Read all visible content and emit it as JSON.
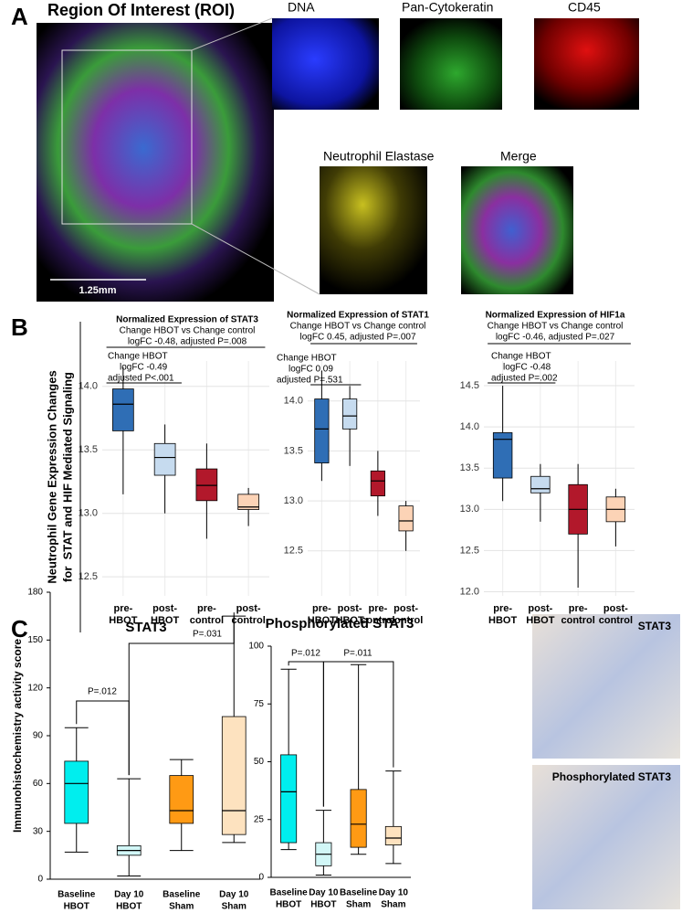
{
  "figure": {
    "panel_labels": [
      "A",
      "B",
      "C"
    ],
    "y_label_b": [
      "Neutrophil Gene Expression Changes",
      "for  STAT and HIF Mediated Signaling"
    ]
  },
  "images": {
    "roi": "Region Of Interest (ROI)",
    "scale_bar": "1.25mm",
    "channels": [
      "DNA",
      "Pan-Cytokeratin",
      "CD45",
      "Neutrophil Elastase",
      "Merge"
    ],
    "ihc": [
      "STAT3",
      "Phosphorylated STAT3"
    ]
  },
  "chart_data": [
    {
      "type": "box",
      "title": "Normalized Expression of STAT3",
      "annotations": [
        "Change HBOT vs Change control",
        "logFC -0.48, adjusted P=.008",
        "Change HBOT",
        "logFC -0.49",
        "adjusted P<.001"
      ],
      "categories": [
        [
          "pre-",
          "HBOT"
        ],
        [
          "post-",
          "HBOT"
        ],
        [
          "pre-",
          "control"
        ],
        [
          "post-",
          "control"
        ]
      ],
      "boxes": [
        {
          "min": 13.15,
          "q1": 13.65,
          "median": 13.86,
          "q3": 13.98,
          "max": 14.15,
          "color": "#2f6eb5"
        },
        {
          "min": 13.0,
          "q1": 13.3,
          "median": 13.44,
          "q3": 13.55,
          "max": 13.7,
          "color": "#c6dbef"
        },
        {
          "min": 12.8,
          "q1": 13.1,
          "median": 13.22,
          "q3": 13.35,
          "max": 13.55,
          "color": "#b2182b"
        },
        {
          "min": 12.9,
          "q1": 13.03,
          "median": 13.05,
          "q3": 13.15,
          "max": 13.2,
          "color": "#fcd3b6"
        }
      ],
      "ylim": [
        12.35,
        14.2
      ],
      "yticks": [
        12.5,
        {
          "value": 13,
          "label": "13.0"
        },
        13.5,
        {
          "value": 14,
          "label": "14.0"
        }
      ],
      "grid": true
    },
    {
      "type": "box",
      "title": "Normalized Expression of STAT1",
      "annotations": [
        "Change HBOT vs Change control",
        "logFC 0.45, adjusted P=.007",
        "Change HBOT",
        "logFC 0.09",
        "adjusted P=.531"
      ],
      "categories": [
        [
          "pre-",
          "HBOT"
        ],
        [
          "post-",
          "HBOT"
        ],
        [
          "pre-",
          "control"
        ],
        [
          "post-",
          "control"
        ]
      ],
      "boxes": [
        {
          "min": 13.2,
          "q1": 13.38,
          "median": 13.72,
          "q3": 14.02,
          "max": 14.3,
          "color": "#2f6eb5"
        },
        {
          "min": 13.35,
          "q1": 13.72,
          "median": 13.85,
          "q3": 14.02,
          "max": 14.15,
          "color": "#c6dbef"
        },
        {
          "min": 12.85,
          "q1": 13.05,
          "median": 13.2,
          "q3": 13.3,
          "max": 13.5,
          "color": "#b2182b"
        },
        {
          "min": 12.5,
          "q1": 12.7,
          "median": 12.8,
          "q3": 12.95,
          "max": 13.0,
          "color": "#fcd3b6"
        }
      ],
      "ylim": [
        12.05,
        14.4
      ],
      "yticks": [
        12.5,
        {
          "value": 13,
          "label": "13.0"
        },
        13.5,
        {
          "value": 14,
          "label": "14.0"
        }
      ],
      "grid": true
    },
    {
      "type": "box",
      "title": "Normalized Expression of HIF1a",
      "annotations": [
        "Change HBOT vs Change control",
        "logFC -0.46, adjusted P=.027",
        "Change HBOT",
        "logFC -0.48",
        "adjusted P=.002"
      ],
      "categories": [
        [
          "pre-",
          "HBOT"
        ],
        [
          "post-",
          "HBOT"
        ],
        [
          "pre-",
          "control"
        ],
        [
          "post-",
          "control"
        ]
      ],
      "boxes": [
        {
          "min": 13.1,
          "q1": 13.38,
          "median": 13.85,
          "q3": 13.93,
          "max": 14.5,
          "color": "#2f6eb5"
        },
        {
          "min": 12.85,
          "q1": 13.2,
          "median": 13.25,
          "q3": 13.4,
          "max": 13.55,
          "color": "#c6dbef"
        },
        {
          "min": 12.05,
          "q1": 12.7,
          "median": 13.0,
          "q3": 13.3,
          "max": 13.55,
          "color": "#b2182b"
        },
        {
          "min": 12.55,
          "q1": 12.85,
          "median": 13.0,
          "q3": 13.15,
          "max": 13.25,
          "color": "#fcd3b6"
        }
      ],
      "ylim": [
        11.95,
        14.8
      ],
      "yticks": [
        {
          "value": 12,
          "label": "12.0"
        },
        12.5,
        {
          "value": 13,
          "label": "13.0"
        },
        13.5,
        {
          "value": 14,
          "label": "14.0"
        },
        14.5
      ],
      "grid": true
    },
    {
      "type": "box",
      "title": "STAT3",
      "y_label": "Immunohistochemistry activity score",
      "annotations": [
        "P=.012",
        "P=.031"
      ],
      "categories": [
        [
          "Baseline",
          "HBOT"
        ],
        [
          "Day 10",
          "HBOT"
        ],
        [
          "Baseline",
          "Sham"
        ],
        [
          "Day 10",
          "Sham"
        ]
      ],
      "boxes": [
        {
          "min": 17,
          "q1": 35,
          "median": 60,
          "q3": 74,
          "max": 95,
          "color": "#00eeee"
        },
        {
          "min": 2,
          "q1": 15,
          "median": 18,
          "q3": 21,
          "max": 63,
          "color": "#d2f7f7"
        },
        {
          "min": 18,
          "q1": 35,
          "median": 43,
          "q3": 65,
          "max": 75,
          "color": "#ff9a14"
        },
        {
          "min": 23,
          "q1": 28,
          "median": 43,
          "q3": 102,
          "max": 165,
          "color": "#fde2bf"
        }
      ],
      "ylim": [
        0,
        180
      ],
      "yticks": [
        0,
        30,
        60,
        90,
        120,
        150,
        180
      ],
      "grid": false
    },
    {
      "type": "box",
      "title": "Phosphorylated STAT3",
      "annotations": [
        "P=.012",
        "P=.011"
      ],
      "categories": [
        [
          "Baseline",
          "HBOT"
        ],
        [
          "Day 10",
          "HBOT"
        ],
        [
          "Baseline",
          "Sham"
        ],
        [
          "Day 10",
          "Sham"
        ]
      ],
      "boxes": [
        {
          "min": 12,
          "q1": 15,
          "median": 37,
          "q3": 53,
          "max": 90,
          "color": "#00eeee"
        },
        {
          "min": 1,
          "q1": 5,
          "median": 10,
          "q3": 15,
          "max": 29,
          "color": "#d2f7f7"
        },
        {
          "min": 10,
          "q1": 13,
          "median": 23,
          "q3": 38,
          "max": 92,
          "color": "#ff9a14"
        },
        {
          "min": 6,
          "q1": 14,
          "median": 17,
          "q3": 22,
          "max": 46,
          "color": "#fde2bf"
        }
      ],
      "ylim": [
        0,
        100
      ],
      "yticks": [
        0,
        25,
        50,
        75,
        100
      ],
      "grid": false
    }
  ]
}
